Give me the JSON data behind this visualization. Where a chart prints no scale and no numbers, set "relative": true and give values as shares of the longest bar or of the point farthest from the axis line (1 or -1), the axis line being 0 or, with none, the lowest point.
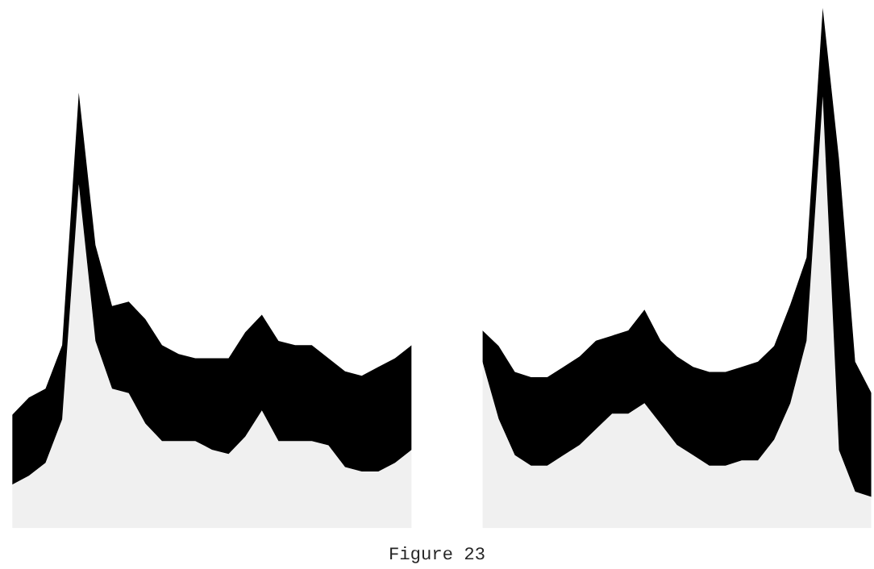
{
  "chart_data": [
    {
      "type": "area",
      "stacked": true,
      "relative": true,
      "categories": [
        null,
        null,
        null,
        null,
        null,
        null,
        null,
        null,
        null,
        null,
        null,
        null,
        null,
        null,
        null,
        null,
        null,
        null,
        null,
        null,
        null,
        null,
        null,
        null,
        null
      ],
      "series": [
        {
          "color": "#f0f0f0",
          "values": [
            0.1,
            0.12,
            0.15,
            0.25,
            0.79,
            0.43,
            0.32,
            0.31,
            0.24,
            0.2,
            0.2,
            0.2,
            0.18,
            0.17,
            0.21,
            0.27,
            0.2,
            0.2,
            0.2,
            0.19,
            0.14,
            0.13,
            0.13,
            0.15,
            0.18
          ]
        },
        {
          "color": "#000000",
          "values": [
            0.16,
            0.18,
            0.17,
            0.17,
            0.21,
            0.22,
            0.19,
            0.21,
            0.24,
            0.22,
            0.2,
            0.19,
            0.21,
            0.22,
            0.24,
            0.22,
            0.23,
            0.22,
            0.22,
            0.2,
            0.22,
            0.22,
            0.24,
            0.24,
            0.24
          ]
        }
      ]
    },
    {
      "type": "area",
      "stacked": true,
      "relative": true,
      "categories": [
        null,
        null,
        null,
        null,
        null,
        null,
        null,
        null,
        null,
        null,
        null,
        null,
        null,
        null,
        null,
        null,
        null,
        null,
        null,
        null,
        null,
        null,
        null,
        null,
        null
      ],
      "series": [
        {
          "color": "#f0f0f0",
          "values": [
            0.32,
            0.21,
            0.14,
            0.12,
            0.12,
            0.14,
            0.16,
            0.19,
            0.22,
            0.22,
            0.24,
            0.2,
            0.16,
            0.14,
            0.12,
            0.12,
            0.13,
            0.13,
            0.17,
            0.24,
            0.36,
            0.83,
            0.15,
            0.07,
            0.06
          ]
        },
        {
          "color": "#000000",
          "values": [
            0.06,
            0.14,
            0.16,
            0.17,
            0.17,
            0.17,
            0.17,
            0.17,
            0.15,
            0.16,
            0.18,
            0.16,
            0.17,
            0.17,
            0.18,
            0.18,
            0.18,
            0.19,
            0.18,
            0.19,
            0.16,
            0.17,
            0.56,
            0.25,
            0.2
          ]
        }
      ],
      "annotations": [
        "Figure 23"
      ]
    }
  ]
}
